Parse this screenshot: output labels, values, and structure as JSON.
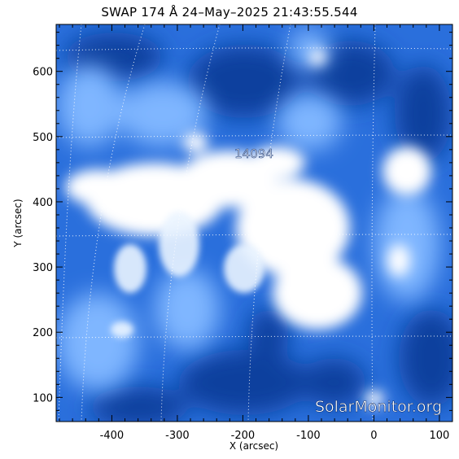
{
  "title": "SWAP 174 Å 24–May–2025 21:43:55.544",
  "active_region": "14094",
  "watermark": "SolarMonitor.org",
  "colors": {
    "deep": "#0b3a9a",
    "mid": "#2f78e6",
    "light": "#8fc2ff",
    "bright": "#ffffff"
  },
  "chart_data": {
    "type": "heatmap",
    "xlabel": "X (arcsec)",
    "ylabel": "Y (arcsec)",
    "xlim": [
      -485,
      120
    ],
    "ylim": [
      63,
      672
    ],
    "x_ticks": [
      "-400",
      "-300",
      "-200",
      "-100",
      "0",
      "100"
    ],
    "y_ticks": [
      "100",
      "200",
      "300",
      "400",
      "500",
      "600"
    ],
    "grid": "dotted heliographic grid on"
  }
}
